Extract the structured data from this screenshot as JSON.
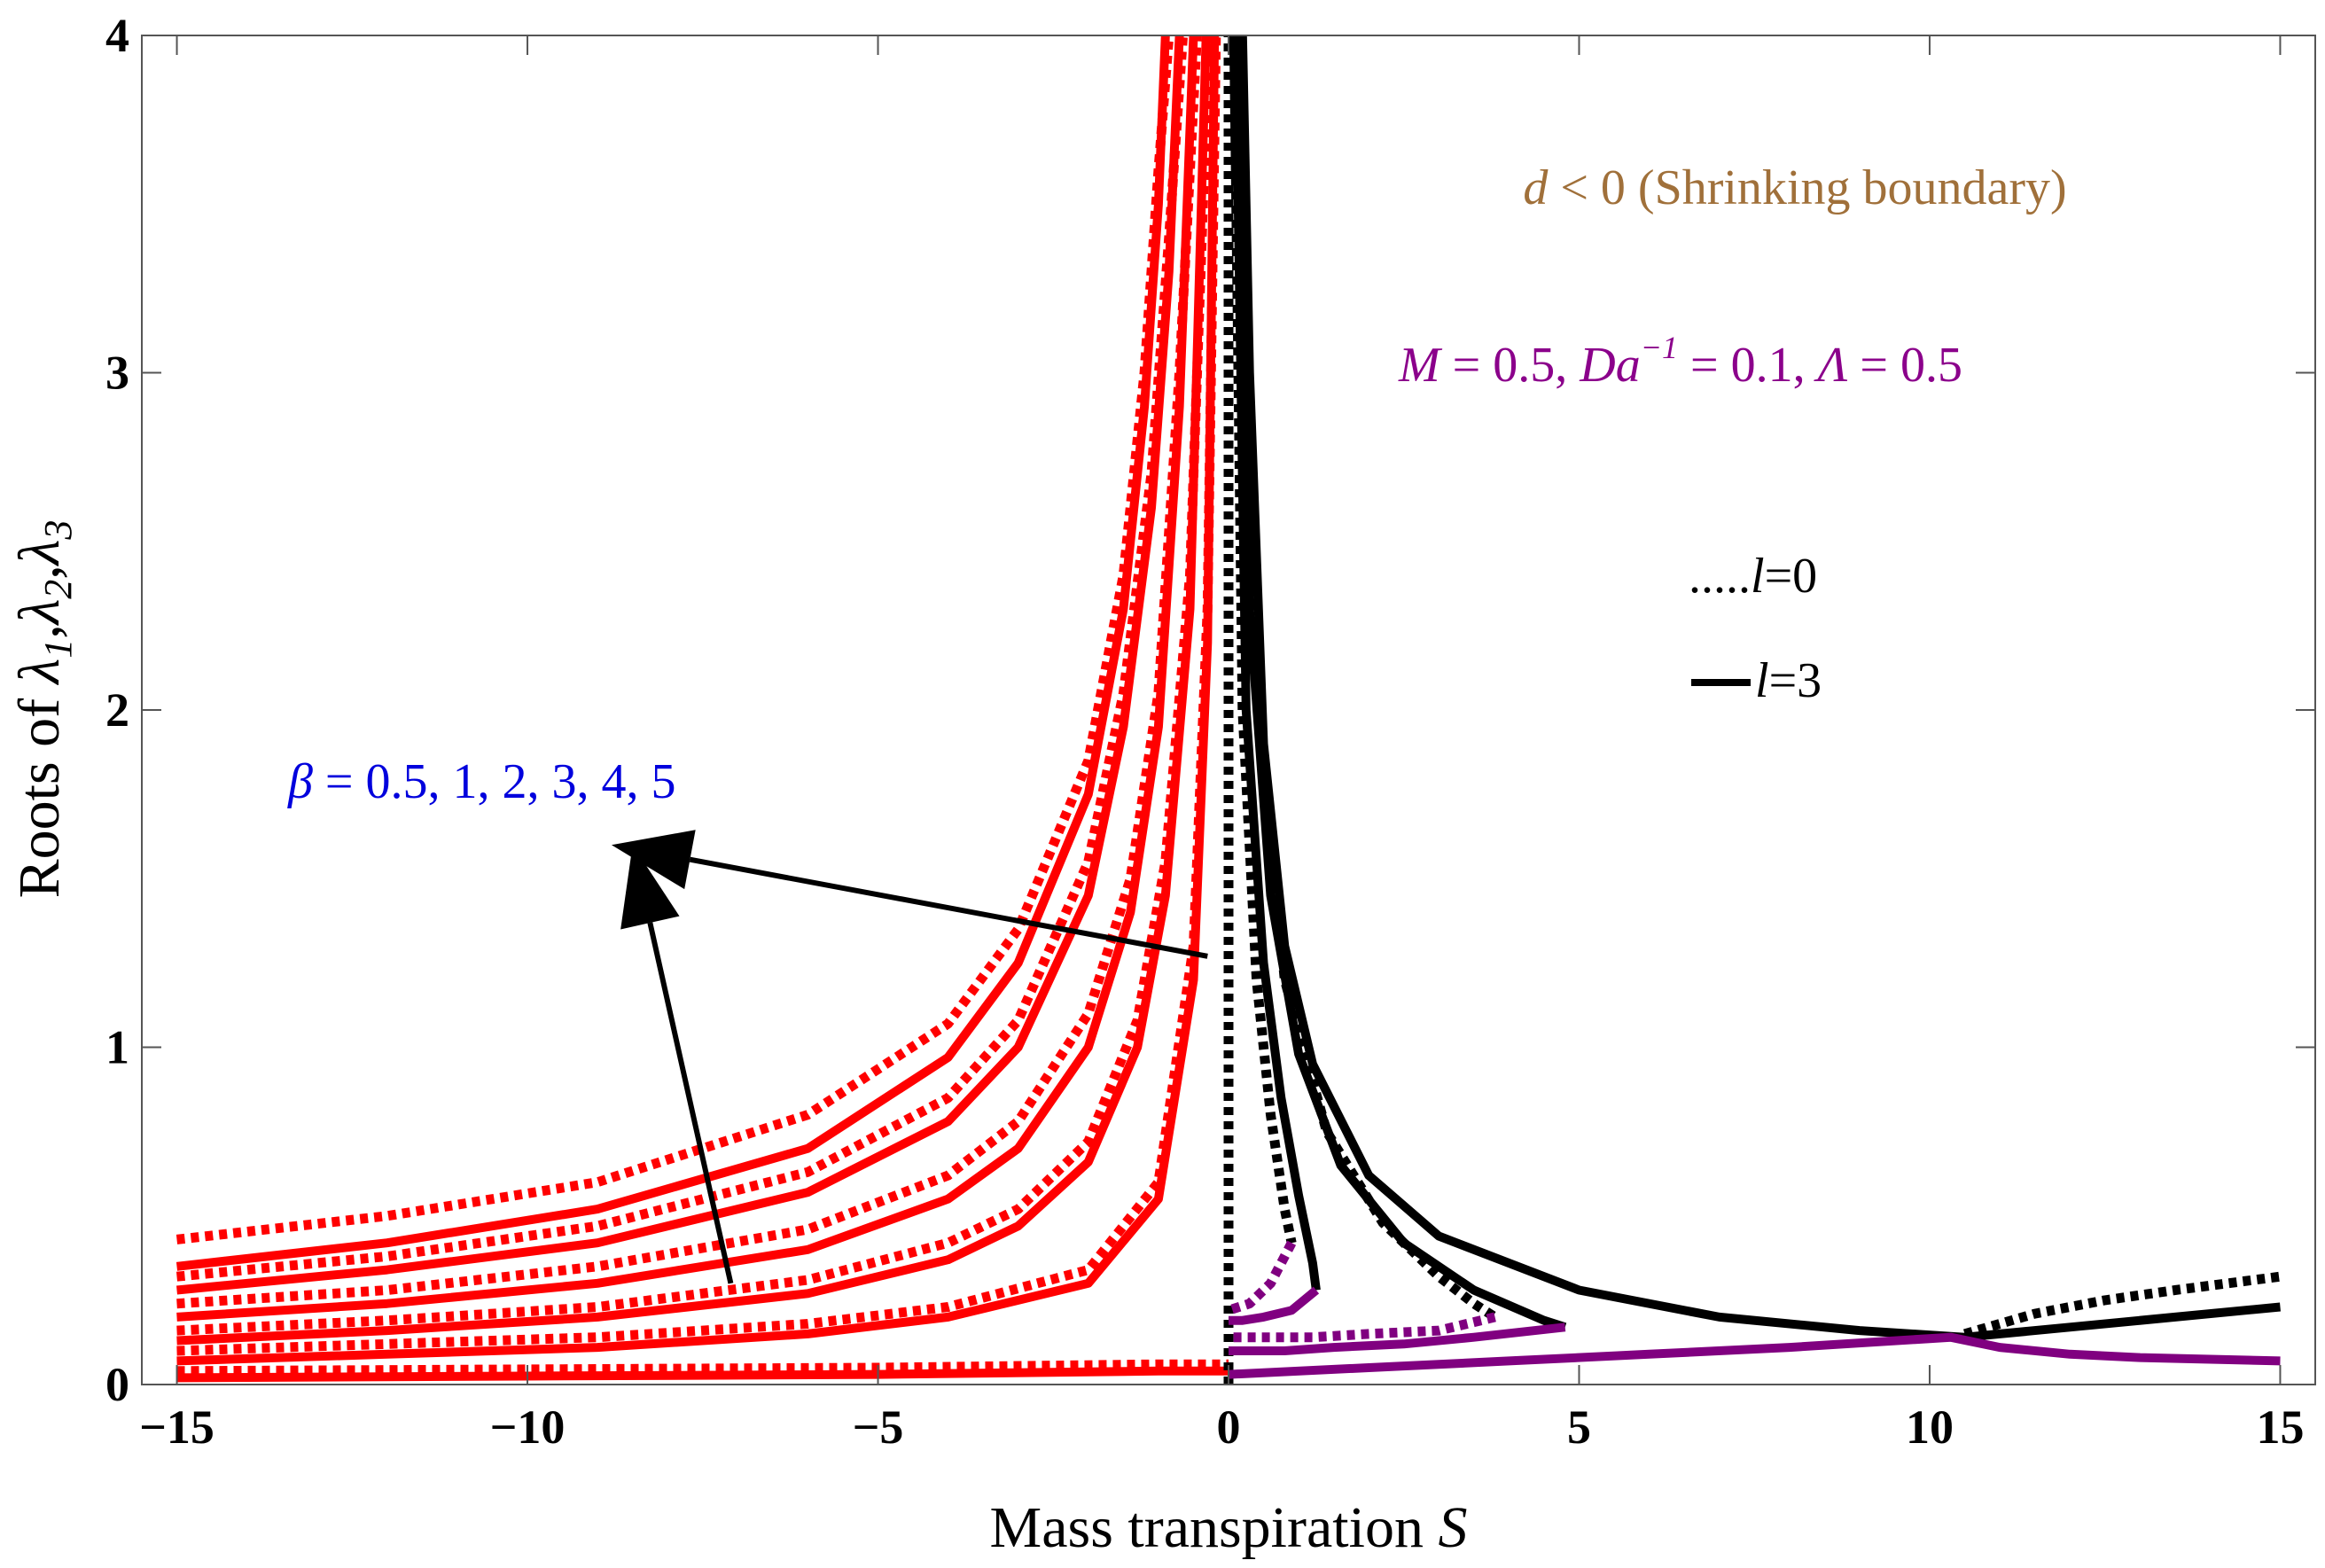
{
  "chart_data": {
    "type": "line",
    "xlabel": "Mass transpiration",
    "xlabel_symbol": "S",
    "ylabel": "Roots of",
    "ylabel_symbols": [
      "λ",
      "1",
      "λ",
      "2",
      "λ",
      "3"
    ],
    "xlim": [
      -15.5,
      15.5
    ],
    "ylim": [
      0,
      4
    ],
    "x_ticks": [
      {
        "v": -15,
        "label": "−15"
      },
      {
        "v": -10,
        "label": "−10"
      },
      {
        "v": -5,
        "label": "−5"
      },
      {
        "v": 0,
        "label": "0"
      },
      {
        "v": 5,
        "label": "5"
      },
      {
        "v": 10,
        "label": "10"
      },
      {
        "v": 15,
        "label": "15"
      }
    ],
    "y_ticks": [
      {
        "v": 0,
        "label": "0"
      },
      {
        "v": 1,
        "label": "1"
      },
      {
        "v": 2,
        "label": "2"
      },
      {
        "v": 3,
        "label": "3"
      },
      {
        "v": 4,
        "label": "4"
      }
    ],
    "legend": {
      "placement": "right",
      "entries": [
        {
          "prefix": ".....",
          "sym": "l",
          "val": "=0",
          "style": "dotted"
        },
        {
          "sym": "l",
          "val": "=3",
          "style": "solid"
        }
      ]
    },
    "annotations": {
      "title_sym": "d",
      "title_rest": " < 0 (Shrinking boundary)",
      "params": [
        {
          "sym": "M",
          "text": " = 0.5, "
        },
        {
          "sym": "Da",
          "sup": "−1",
          "text": " = 0.1, "
        },
        {
          "sym": "Λ",
          "text": " = 0.5"
        }
      ],
      "beta_sym": "β",
      "beta_text": " = 0.5, 1, 2, 3, 4, 5"
    },
    "colors": {
      "red": "#ff0000",
      "black": "#000000",
      "purple": "#800080",
      "param_color": "#8b008b",
      "title_color": "#a0703a",
      "beta_color": "#0000dd"
    },
    "arrows": [
      {
        "from": [
          -0.3,
          1.27
        ],
        "to": [
          -8.8,
          1.6
        ]
      },
      {
        "from": [
          -7.1,
          0.3
        ],
        "to": [
          -8.5,
          1.6
        ]
      }
    ],
    "series": [
      {
        "color": "red",
        "style": "solid",
        "x": [
          -15,
          -12,
          -9,
          -6,
          -4,
          -3,
          -2,
          -1.5,
          -1.2,
          -1.0,
          -0.9
        ],
        "y": [
          0.35,
          0.42,
          0.52,
          0.7,
          0.97,
          1.25,
          1.75,
          2.3,
          2.9,
          3.5,
          4.0
        ]
      },
      {
        "color": "red",
        "style": "solid",
        "x": [
          -15,
          -12,
          -9,
          -6,
          -4,
          -3,
          -2,
          -1.5,
          -1.1,
          -0.85,
          -0.7
        ],
        "y": [
          0.28,
          0.34,
          0.42,
          0.57,
          0.78,
          1.0,
          1.45,
          1.95,
          2.6,
          3.3,
          4.0
        ]
      },
      {
        "color": "red",
        "style": "solid",
        "x": [
          -15,
          -12,
          -9,
          -6,
          -4,
          -3,
          -2,
          -1.4,
          -1.0,
          -0.7,
          -0.5
        ],
        "y": [
          0.2,
          0.24,
          0.3,
          0.4,
          0.55,
          0.7,
          1.0,
          1.4,
          1.95,
          2.9,
          4.0
        ]
      },
      {
        "color": "red",
        "style": "solid",
        "x": [
          -15,
          -12,
          -9,
          -6,
          -4,
          -3,
          -2,
          -1.3,
          -0.9,
          -0.55,
          -0.32
        ],
        "y": [
          0.13,
          0.16,
          0.2,
          0.27,
          0.37,
          0.47,
          0.66,
          1.0,
          1.45,
          2.3,
          4.0
        ]
      },
      {
        "color": "red",
        "style": "solid",
        "x": [
          -15,
          -12,
          -9,
          -6,
          -4,
          -2,
          -1,
          -0.5,
          -0.3,
          -0.2
        ],
        "y": [
          0.07,
          0.09,
          0.11,
          0.15,
          0.2,
          0.3,
          0.55,
          1.2,
          2.2,
          4.0
        ]
      },
      {
        "color": "red",
        "style": "solid",
        "x": [
          -15,
          -10,
          -5,
          -1,
          -0.2,
          0
        ],
        "y": [
          0.02,
          0.025,
          0.03,
          0.04,
          0.04,
          0.04
        ]
      },
      {
        "color": "red",
        "style": "dotted",
        "x": [
          -15,
          -12,
          -9,
          -6,
          -4,
          -3,
          -2,
          -1.5,
          -1.2,
          -1.0,
          -0.85
        ],
        "y": [
          0.43,
          0.5,
          0.6,
          0.8,
          1.07,
          1.35,
          1.85,
          2.4,
          3.0,
          3.6,
          4.0
        ]
      },
      {
        "color": "red",
        "style": "dotted",
        "x": [
          -15,
          -12,
          -9,
          -6,
          -4,
          -3,
          -2,
          -1.5,
          -1.1,
          -0.85,
          -0.65
        ],
        "y": [
          0.32,
          0.38,
          0.47,
          0.63,
          0.85,
          1.08,
          1.55,
          2.05,
          2.7,
          3.4,
          4.0
        ]
      },
      {
        "color": "red",
        "style": "dotted",
        "x": [
          -15,
          -12,
          -9,
          -6,
          -4,
          -3,
          -2,
          -1.4,
          -1.0,
          -0.7,
          -0.45
        ],
        "y": [
          0.24,
          0.28,
          0.35,
          0.46,
          0.62,
          0.78,
          1.1,
          1.5,
          2.05,
          3.0,
          4.0
        ]
      },
      {
        "color": "red",
        "style": "dotted",
        "x": [
          -15,
          -12,
          -9,
          -6,
          -4,
          -3,
          -2,
          -1.3,
          -0.9,
          -0.55,
          -0.28
        ],
        "y": [
          0.16,
          0.19,
          0.23,
          0.31,
          0.42,
          0.52,
          0.72,
          1.08,
          1.55,
          2.4,
          4.0
        ]
      },
      {
        "color": "red",
        "style": "dotted",
        "x": [
          -15,
          -12,
          -9,
          -6,
          -4,
          -2,
          -1,
          -0.5,
          -0.3,
          -0.18
        ],
        "y": [
          0.1,
          0.12,
          0.14,
          0.18,
          0.23,
          0.34,
          0.6,
          1.3,
          2.3,
          4.0
        ]
      },
      {
        "color": "red",
        "style": "dotted",
        "x": [
          -15,
          -10,
          -5,
          -1,
          -0.2,
          0
        ],
        "y": [
          0.04,
          0.045,
          0.05,
          0.06,
          0.06,
          0.06
        ]
      },
      {
        "color": "black",
        "style": "solid",
        "x": [
          0.2,
          0.3,
          0.5,
          0.8,
          1.2,
          2,
          3,
          5,
          7,
          9,
          10.5,
          12,
          13.5,
          15
        ],
        "y": [
          4.0,
          3.0,
          1.9,
          1.3,
          0.95,
          0.62,
          0.44,
          0.28,
          0.2,
          0.16,
          0.14,
          0.17,
          0.2,
          0.23
        ]
      },
      {
        "color": "black",
        "style": "solid",
        "x": [
          0.15,
          0.3,
          0.6,
          1.0,
          1.6,
          2.5,
          3.5,
          4.5,
          4.8
        ],
        "y": [
          4.0,
          2.3,
          1.45,
          0.98,
          0.65,
          0.42,
          0.28,
          0.19,
          0.17
        ]
      },
      {
        "color": "black",
        "style": "solid",
        "x": [
          0.1,
          0.25,
          0.5,
          0.75,
          1.0,
          1.2,
          1.25
        ],
        "y": [
          4.0,
          2.0,
          1.25,
          0.85,
          0.56,
          0.36,
          0.28
        ]
      },
      {
        "color": "black",
        "style": "dotted",
        "x": [
          10.5,
          11.5,
          12.5,
          13.5,
          15
        ],
        "y": [
          0.15,
          0.21,
          0.25,
          0.28,
          0.32
        ]
      },
      {
        "color": "black",
        "style": "dotted",
        "x": [
          0.15,
          0.4,
          0.8,
          1.4,
          2.2,
          3.0,
          3.5,
          3.8
        ],
        "y": [
          4.0,
          2.1,
          1.2,
          0.75,
          0.48,
          0.32,
          0.24,
          0.2
        ]
      },
      {
        "color": "black",
        "style": "dotted",
        "x": [
          0.08,
          0.2,
          0.4,
          0.6,
          0.8,
          0.9
        ],
        "y": [
          4.0,
          2.0,
          1.2,
          0.8,
          0.52,
          0.42
        ]
      },
      {
        "color": "black",
        "style": "dotted",
        "x": [
          0,
          0,
          0
        ],
        "y": [
          0,
          2,
          4
        ]
      },
      {
        "color": "purple",
        "style": "solid",
        "x": [
          0,
          2,
          4,
          6,
          8,
          10.3,
          11,
          12,
          13,
          14,
          15
        ],
        "y": [
          0.03,
          0.05,
          0.07,
          0.09,
          0.11,
          0.14,
          0.11,
          0.09,
          0.08,
          0.075,
          0.07
        ]
      },
      {
        "color": "purple",
        "style": "solid",
        "x": [
          4.8,
          3.5,
          2.5,
          1.5,
          0.8,
          0.3,
          0
        ],
        "y": [
          0.17,
          0.14,
          0.12,
          0.11,
          0.1,
          0.1,
          0.1
        ]
      },
      {
        "color": "purple",
        "style": "solid",
        "x": [
          1.25,
          0.9,
          0.5,
          0.2,
          0
        ],
        "y": [
          0.28,
          0.22,
          0.2,
          0.19,
          0.19
        ]
      },
      {
        "color": "purple",
        "style": "dotted",
        "x": [
          3.8,
          3.0,
          2.0,
          1.2,
          0.5,
          0
        ],
        "y": [
          0.2,
          0.16,
          0.15,
          0.14,
          0.14,
          0.14
        ]
      },
      {
        "color": "purple",
        "style": "dotted",
        "x": [
          0.9,
          0.6,
          0.3,
          0
        ],
        "y": [
          0.42,
          0.3,
          0.24,
          0.22
        ]
      }
    ]
  }
}
